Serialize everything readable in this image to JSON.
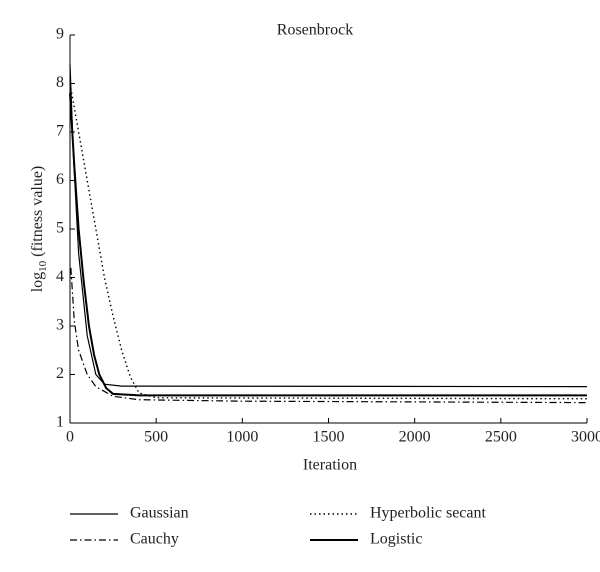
{
  "chart_data": {
    "type": "line",
    "title": "Rosenbrock",
    "xlabel": "Iteration",
    "ylabel": [
      "log",
      "10",
      "(fitness value)"
    ],
    "xlim": [
      0,
      3000
    ],
    "xticks": [
      0,
      500,
      1000,
      1500,
      2000,
      2500,
      3000
    ],
    "ylim": [
      1,
      9
    ],
    "yticks": [
      1,
      2,
      3,
      4,
      5,
      6,
      7,
      8,
      9
    ],
    "series": [
      {
        "name": "Gaussian",
        "color": "#000000",
        "style": "solid",
        "width": 1.2,
        "x": [
          0,
          20,
          50,
          100,
          150,
          200,
          300,
          3000
        ],
        "values": [
          8.4,
          6.5,
          4.5,
          2.8,
          2.0,
          1.8,
          1.76,
          1.75
        ]
      },
      {
        "name": "Hyperbolic secant",
        "color": "#000000",
        "style": "dotted",
        "width": 1.4,
        "x": [
          0,
          50,
          100,
          150,
          200,
          250,
          300,
          350,
          400,
          500,
          3000
        ],
        "values": [
          8.0,
          7.0,
          6.0,
          5.0,
          4.0,
          3.2,
          2.5,
          1.95,
          1.62,
          1.52,
          1.5
        ]
      },
      {
        "name": "Cauchy",
        "color": "#000000",
        "style": "dashdot",
        "width": 1.2,
        "x": [
          5,
          25,
          50,
          100,
          150,
          250,
          400,
          1000,
          3000
        ],
        "values": [
          4.2,
          3.1,
          2.5,
          2.0,
          1.75,
          1.55,
          1.48,
          1.45,
          1.42
        ]
      },
      {
        "name": "Logistic",
        "color": "#000000",
        "style": "solid",
        "width": 2,
        "x": [
          0,
          25,
          50,
          80,
          110,
          140,
          170,
          210,
          250,
          400,
          3000
        ],
        "values": [
          7.8,
          6.3,
          5.0,
          3.9,
          3.0,
          2.4,
          2.0,
          1.72,
          1.6,
          1.57,
          1.57
        ]
      }
    ]
  }
}
